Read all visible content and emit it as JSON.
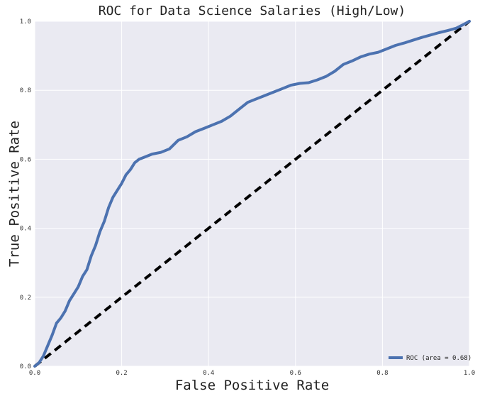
{
  "chart_data": {
    "type": "line",
    "title": "ROC for Data Science Salaries (High/Low)",
    "xlabel": "False Positive Rate",
    "ylabel": "True Positive Rate",
    "xlim": [
      0,
      1
    ],
    "ylim": [
      0,
      1
    ],
    "xticks": [
      "0.0",
      "0.2",
      "0.4",
      "0.6",
      "0.8",
      "1.0"
    ],
    "yticks": [
      "0.0",
      "0.2",
      "0.4",
      "0.6",
      "0.8",
      "1.0"
    ],
    "grid": true,
    "legend_position": "lower-right",
    "series": [
      {
        "name": "ROC (area = 0.68)",
        "style": "solid",
        "color": "#4c72b0",
        "x": [
          0.0,
          0.01,
          0.02,
          0.03,
          0.04,
          0.05,
          0.06,
          0.07,
          0.08,
          0.09,
          0.1,
          0.11,
          0.12,
          0.13,
          0.14,
          0.15,
          0.16,
          0.17,
          0.18,
          0.19,
          0.2,
          0.21,
          0.22,
          0.23,
          0.24,
          0.25,
          0.27,
          0.29,
          0.31,
          0.33,
          0.35,
          0.37,
          0.39,
          0.41,
          0.43,
          0.45,
          0.47,
          0.49,
          0.51,
          0.53,
          0.55,
          0.57,
          0.59,
          0.61,
          0.63,
          0.65,
          0.67,
          0.69,
          0.71,
          0.73,
          0.75,
          0.77,
          0.79,
          0.81,
          0.83,
          0.85,
          0.87,
          0.89,
          0.91,
          0.93,
          0.95,
          0.97,
          0.99,
          1.0
        ],
        "y": [
          0.0,
          0.01,
          0.03,
          0.06,
          0.09,
          0.125,
          0.14,
          0.16,
          0.19,
          0.21,
          0.23,
          0.26,
          0.28,
          0.32,
          0.35,
          0.39,
          0.42,
          0.46,
          0.49,
          0.51,
          0.53,
          0.555,
          0.57,
          0.59,
          0.6,
          0.605,
          0.615,
          0.62,
          0.63,
          0.655,
          0.665,
          0.68,
          0.69,
          0.7,
          0.71,
          0.725,
          0.745,
          0.765,
          0.775,
          0.785,
          0.795,
          0.805,
          0.815,
          0.82,
          0.822,
          0.83,
          0.84,
          0.855,
          0.875,
          0.885,
          0.897,
          0.905,
          0.91,
          0.92,
          0.93,
          0.937,
          0.945,
          0.953,
          0.96,
          0.967,
          0.973,
          0.98,
          0.993,
          1.0
        ]
      },
      {
        "name": "",
        "style": "dashed",
        "color": "#000000",
        "x": [
          0,
          1
        ],
        "y": [
          0,
          1
        ]
      }
    ],
    "colors": {
      "plot_background": "#eaeaf2",
      "grid": "#ffffff"
    }
  }
}
